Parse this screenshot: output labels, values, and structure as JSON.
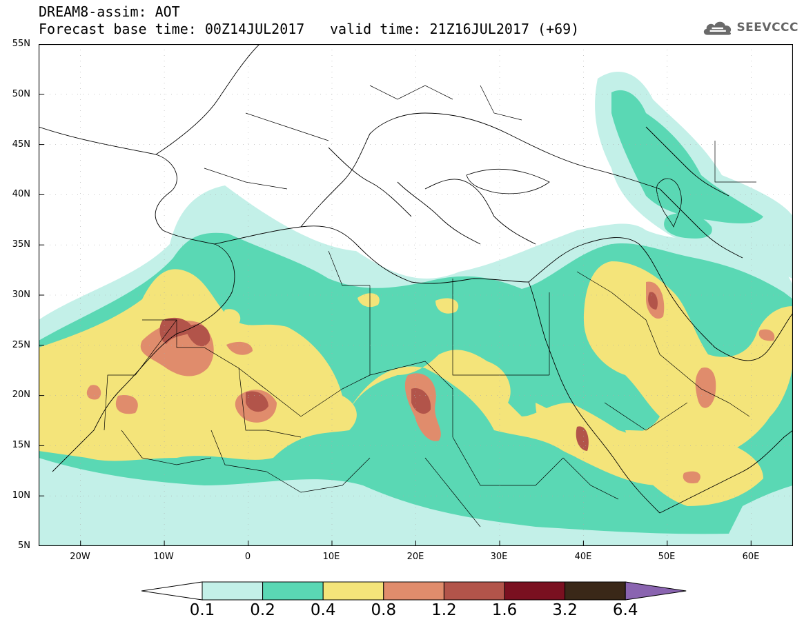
{
  "header": {
    "title_line1": "DREAM8-assim: AOT",
    "title_line2": "Forecast base time: 00Z14JUL2017",
    "valid_time": "valid time: 21Z16JUL2017 (+69)"
  },
  "logo": {
    "text": "SEEVCCC",
    "icon": "cloud-icon"
  },
  "map": {
    "lat_labels": [
      "55N",
      "50N",
      "45N",
      "40N",
      "35N",
      "30N",
      "25N",
      "20N",
      "15N",
      "10N",
      "5N"
    ],
    "lon_labels": [
      "20W",
      "10W",
      "0",
      "10E",
      "20E",
      "30E",
      "40E",
      "50E",
      "60E"
    ],
    "extent": {
      "lon_min": -25,
      "lon_max": 65,
      "lat_min": 5,
      "lat_max": 55
    },
    "colors": {
      "c0.1": "#c3f0e8",
      "c0.2": "#5ad8b4",
      "c0.4": "#f4e47a",
      "c0.8": "#e08c6c",
      "c1.2": "#b2544a",
      "c1.6": "#7a1020",
      "c3.2": "#3a2818",
      "c6.4": "#8a64b0"
    }
  },
  "colorbar": {
    "labels": [
      "0.1",
      "0.2",
      "0.4",
      "0.8",
      "1.2",
      "1.6",
      "3.2",
      "6.4"
    ],
    "colors": [
      "#ffffff",
      "#c3f0e8",
      "#5ad8b4",
      "#f4e47a",
      "#e08c6c",
      "#b2544a",
      "#7a1020",
      "#3a2818",
      "#8a64b0"
    ]
  }
}
